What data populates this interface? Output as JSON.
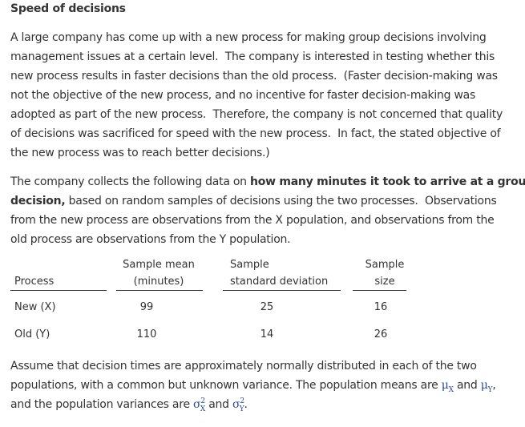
{
  "title": "Speed of decisions",
  "paragraph1": [
    "A large company has come up with a new process for making group decisions involving",
    "management issues at a certain level.  The company is interested in testing whether this",
    "new process results in faster decisions than the old process.  (Faster decision-making was",
    "not the objective of the new process, and no incentive for faster decision-making was",
    "adopted as part of the new process.  Therefore, the company is not concerned that quality",
    "of decisions was sacrificed for speed with the new process.  In fact, the stated objective of",
    "the new process was to reach better decisions.)"
  ],
  "paragraph2": [
    [
      "The company collects the following data on ",
      "how many minutes it took to arrive at a group"
    ],
    [
      "decision,",
      " based on random samples of decisions using the two processes.  Observations"
    ],
    [
      "from the new process are observations from the X population, and observations from the"
    ],
    [
      "old process are observations from the Y population."
    ]
  ],
  "table": {
    "headers": [
      [
        "Process"
      ],
      [
        "Sample mean",
        "(minutes)"
      ],
      [
        "Sample",
        "standard deviation"
      ],
      [
        "Sample",
        "size"
      ]
    ],
    "rows": [
      [
        "New (X)",
        "99",
        "25",
        "16"
      ],
      [
        "Old (Y)",
        "110",
        "14",
        "26"
      ]
    ]
  },
  "paragraph3": {
    "lines": [
      "Assume that decision times are approximately normally distributed in each of the two",
      "populations, with a common but unknown variance. The population means are ",
      "and the population variances are "
    ],
    "symbols": [
      {
        "base": "μ",
        "sub": "X"
      },
      {
        "text": " and "
      },
      {
        "base": "μ",
        "sub": "Y"
      },
      {
        "text": ","
      },
      {
        "base": "σ",
        "sub": "X",
        "sup": "2"
      },
      {
        "text": " and "
      },
      {
        "base": "σ",
        "sub": "Y",
        "sup": "2"
      },
      {
        "text": "."
      }
    ]
  }
}
